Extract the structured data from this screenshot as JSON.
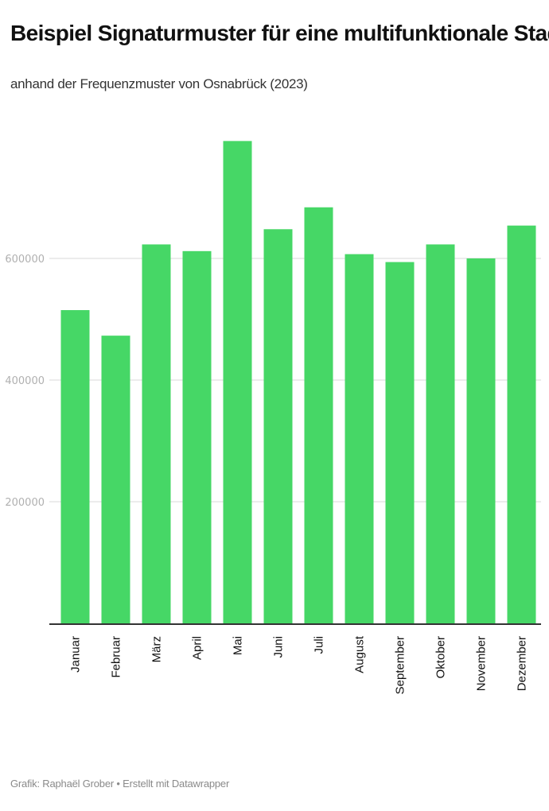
{
  "chart_data": {
    "type": "bar",
    "title": "Beispiel Signaturmuster für eine multifunktionale Stadt",
    "subtitle": "anhand der Frequenzmuster von Osnabrück (2023)",
    "categories": [
      "Januar",
      "Februar",
      "März",
      "April",
      "Mai",
      "Juni",
      "Juli",
      "August",
      "September",
      "Oktober",
      "November",
      "Dezember"
    ],
    "values": [
      515000,
      473000,
      623000,
      612000,
      793000,
      648000,
      684000,
      607000,
      594000,
      623000,
      600000,
      654000
    ],
    "y_ticks": [
      200000,
      400000,
      600000
    ],
    "y_tick_labels": [
      "200000",
      "400000",
      "600000"
    ],
    "ylim": [
      0,
      800000
    ],
    "grid": true,
    "bar_color": "#46d766"
  },
  "footer": "Grafik: Raphaël Grober • Erstellt mit Datawrapper"
}
